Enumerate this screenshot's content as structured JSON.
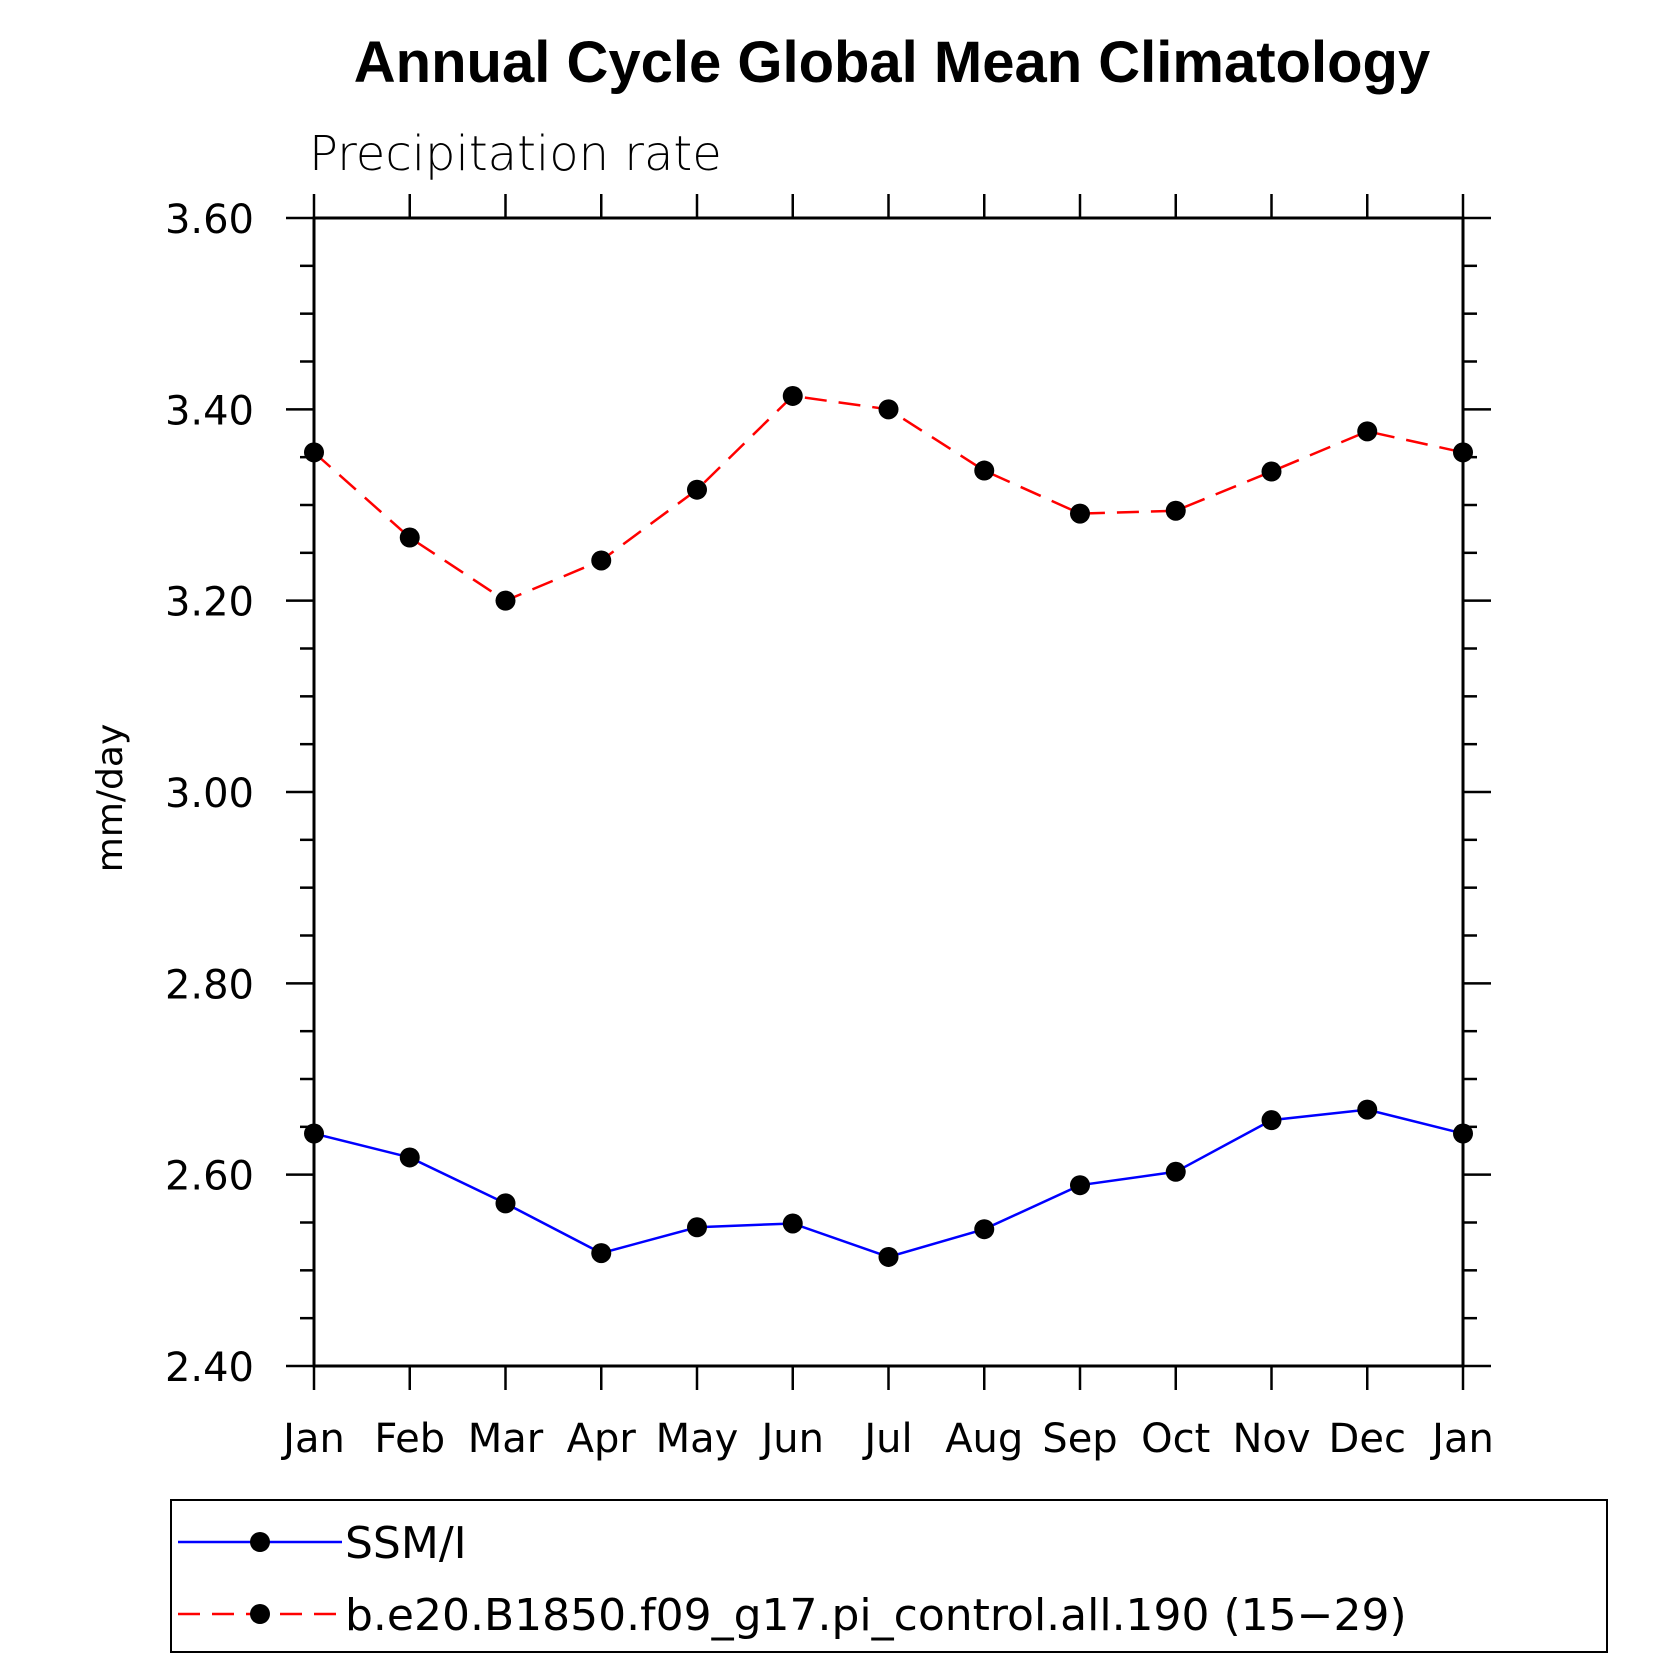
{
  "chart_data": {
    "type": "line",
    "title": "Annual Cycle Global Mean Climatology",
    "subtitle": "Precipitation rate",
    "xlabel": "",
    "ylabel": "mm/day",
    "ylim": [
      2.4,
      3.6
    ],
    "categories": [
      "Jan",
      "Feb",
      "Mar",
      "Apr",
      "May",
      "Jun",
      "Jul",
      "Aug",
      "Sep",
      "Oct",
      "Nov",
      "Dec",
      "Jan"
    ],
    "y_ticks": [
      "2.40",
      "2.60",
      "2.80",
      "3.00",
      "3.20",
      "3.40",
      "3.60"
    ],
    "grid": false,
    "legend_position": "bottom",
    "series": [
      {
        "name": "SSM/I",
        "color": "#0000ff",
        "line_style": "solid",
        "marker": "filled-circle",
        "values": [
          2.643,
          2.618,
          2.57,
          2.518,
          2.545,
          2.549,
          2.514,
          2.543,
          2.589,
          2.603,
          2.657,
          2.668,
          2.643
        ]
      },
      {
        "name": "b.e20.B1850.f09_g17.pi_control.all.190 (15−29)",
        "color": "#ff0000",
        "line_style": "dashed",
        "marker": "filled-circle",
        "values": [
          3.355,
          3.266,
          3.2,
          3.242,
          3.316,
          3.414,
          3.4,
          3.336,
          3.291,
          3.294,
          3.335,
          3.377,
          3.355
        ]
      }
    ]
  }
}
